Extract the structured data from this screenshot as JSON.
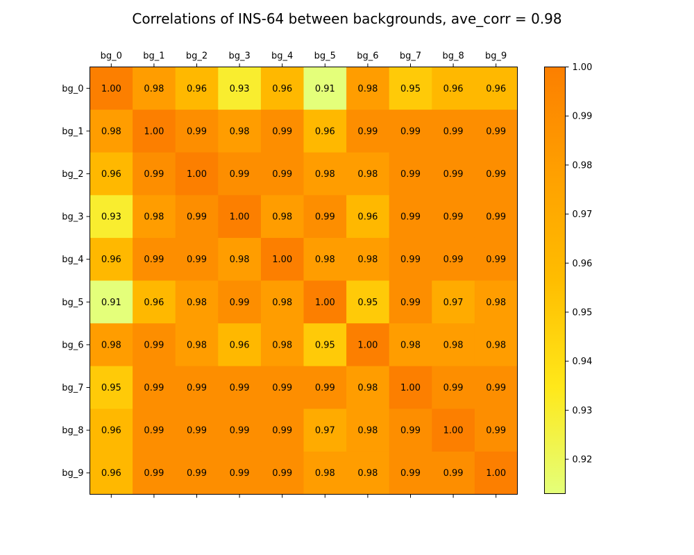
{
  "chart_data": {
    "type": "heatmap",
    "title": "Correlations of INS-64 between backgrounds, ave_corr = 0.98",
    "x_labels": [
      "bg_0",
      "bg_1",
      "bg_2",
      "bg_3",
      "bg_4",
      "bg_5",
      "bg_6",
      "bg_7",
      "bg_8",
      "bg_9"
    ],
    "y_labels": [
      "bg_0",
      "bg_1",
      "bg_2",
      "bg_3",
      "bg_4",
      "bg_5",
      "bg_6",
      "bg_7",
      "bg_8",
      "bg_9"
    ],
    "values": [
      [
        1.0,
        0.98,
        0.96,
        0.93,
        0.96,
        0.91,
        0.98,
        0.95,
        0.96,
        0.96
      ],
      [
        0.98,
        1.0,
        0.99,
        0.98,
        0.99,
        0.96,
        0.99,
        0.99,
        0.99,
        0.99
      ],
      [
        0.96,
        0.99,
        1.0,
        0.99,
        0.99,
        0.98,
        0.98,
        0.99,
        0.99,
        0.99
      ],
      [
        0.93,
        0.98,
        0.99,
        1.0,
        0.98,
        0.99,
        0.96,
        0.99,
        0.99,
        0.99
      ],
      [
        0.96,
        0.99,
        0.99,
        0.98,
        1.0,
        0.98,
        0.98,
        0.99,
        0.99,
        0.99
      ],
      [
        0.91,
        0.96,
        0.98,
        0.99,
        0.98,
        1.0,
        0.95,
        0.99,
        0.97,
        0.98
      ],
      [
        0.98,
        0.99,
        0.98,
        0.96,
        0.98,
        0.95,
        1.0,
        0.98,
        0.98,
        0.98
      ],
      [
        0.95,
        0.99,
        0.99,
        0.99,
        0.99,
        0.99,
        0.98,
        1.0,
        0.99,
        0.99
      ],
      [
        0.96,
        0.99,
        0.99,
        0.99,
        0.99,
        0.97,
        0.98,
        0.99,
        1.0,
        0.99
      ],
      [
        0.96,
        0.99,
        0.99,
        0.99,
        0.99,
        0.98,
        0.98,
        0.99,
        0.99,
        1.0
      ]
    ],
    "colorbar": {
      "range": [
        0.913,
        1.0
      ],
      "ticks": [
        "1.00",
        "0.99",
        "0.98",
        "0.97",
        "0.96",
        "0.95",
        "0.94",
        "0.93",
        "0.92"
      ],
      "colormap": "Wistia"
    },
    "x_axis_position": "top"
  }
}
